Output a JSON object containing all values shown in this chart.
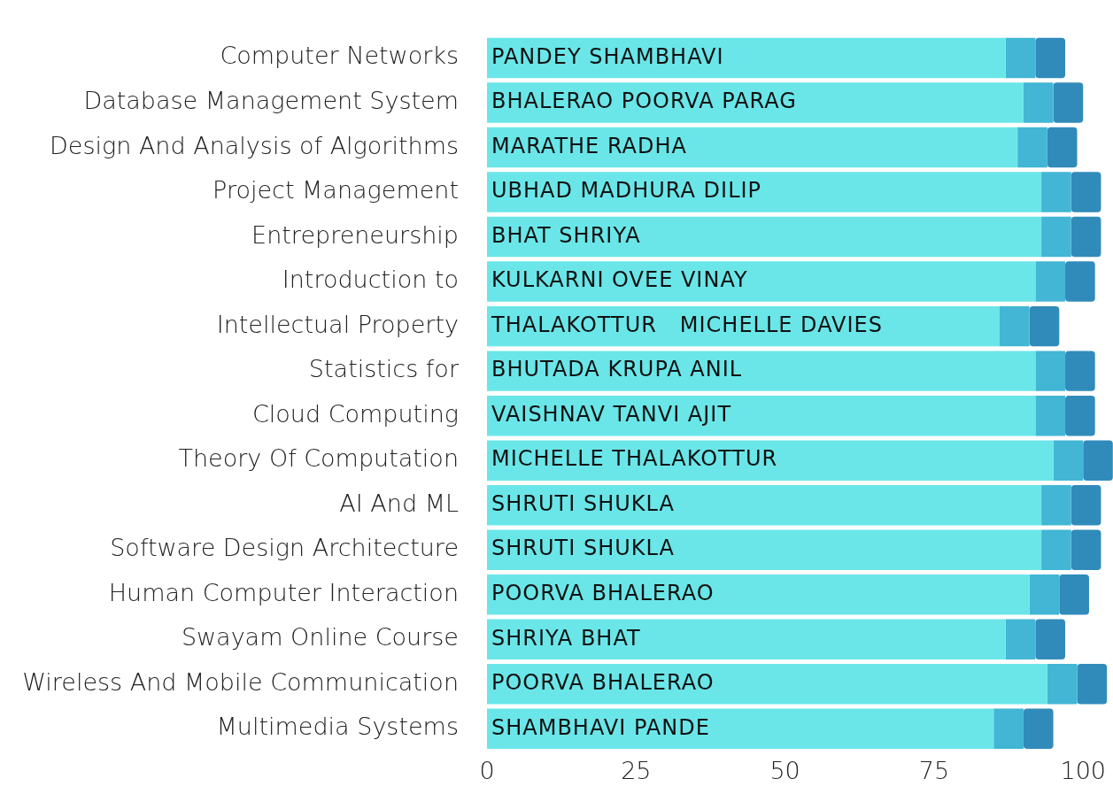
{
  "chart_data": {
    "type": "bar",
    "orientation": "horizontal",
    "stacked": true,
    "categories": [
      "Computer Networks",
      "Database Management System",
      "Design And Analysis of Algorithms",
      "Project Management",
      "Entrepreneurship",
      "Introduction to",
      "Intellectual Property",
      "Statistics for",
      "Cloud Computing",
      "Theory Of Computation",
      "AI And ML",
      "Software Design Architecture",
      "Human Computer Interaction",
      "Swayam Online Course",
      "Wireless And Mobile Communication",
      "Multimedia Systems"
    ],
    "series": [
      {
        "color": "#6ae6e9",
        "values": [
          87,
          90,
          89,
          93,
          93,
          92,
          86,
          92,
          92,
          95,
          93,
          93,
          91,
          87,
          94,
          85
        ]
      },
      {
        "color": "#42b6d4",
        "values": [
          5,
          5,
          5,
          5,
          5,
          5,
          5,
          5,
          5,
          5,
          5,
          5,
          5,
          5,
          5,
          5
        ]
      },
      {
        "color": "#308bba",
        "values": [
          5,
          5,
          5,
          5,
          5,
          5,
          5,
          5,
          5,
          5,
          5,
          5,
          5,
          5,
          5,
          5
        ]
      }
    ],
    "xlim": [
      0,
      105
    ],
    "xticks": [
      0,
      25,
      50,
      75,
      100
    ],
    "annotations": [
      {
        "text": "PANDEY SHAMBHAVI",
        "y": "Computer Networks"
      },
      {
        "text": "BHALERAO POORVA PARAG",
        "y": "Database Management System"
      },
      {
        "text": "MARATHE RADHA",
        "y": "Design And Analysis of Algorithms"
      },
      {
        "text": "UBHAD MADHURA DILIP",
        "y": "Project Management"
      },
      {
        "text": "BHAT SHRIYA",
        "y": "Entrepreneurship"
      },
      {
        "text": "KULKARNI OVEE VINAY",
        "y": "Introduction to"
      },
      {
        "text": "THALAKOTTUR   MICHELLE DAVIES",
        "y": "Intellectual Property"
      },
      {
        "text": "BHUTADA KRUPA ANIL",
        "y": "Statistics for"
      },
      {
        "text": "VAISHNAV TANVI AJIT",
        "y": "Cloud Computing"
      },
      {
        "text": "MICHELLE THALAKOTTUR",
        "y": "Theory Of Computation"
      },
      {
        "text": "SHRUTI SHUKLA",
        "y": "AI And ML"
      },
      {
        "text": "SHRUTI SHUKLA",
        "y": "Software Design Architecture"
      },
      {
        "text": "POORVA BHALERAO",
        "y": "Human Computer Interaction"
      },
      {
        "text": "SHRIYA BHAT",
        "y": "Swayam Online Course"
      },
      {
        "text": "POORVA BHALERAO",
        "y": "Wireless And Mobile Communication"
      },
      {
        "text": "SHAMBHAVI PANDE",
        "y": "Multimedia Systems"
      }
    ]
  }
}
